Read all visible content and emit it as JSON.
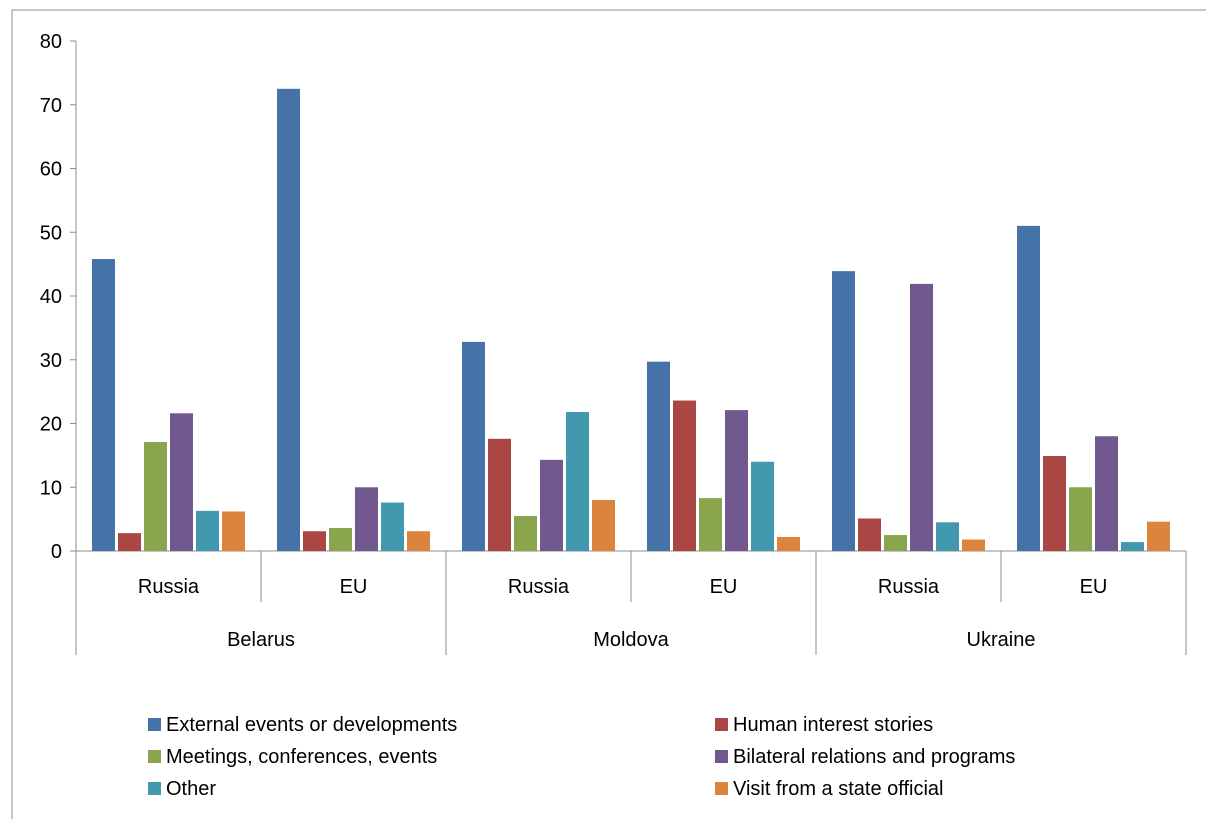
{
  "chart_data": {
    "type": "bar",
    "title": "",
    "xlabel": "",
    "ylabel": "",
    "ylim": [
      0,
      80
    ],
    "yticks": [
      0,
      10,
      20,
      30,
      40,
      50,
      60,
      70,
      80
    ],
    "grid": false,
    "legend_position": "bottom",
    "groups": [
      {
        "label": "Belarus",
        "categories": [
          "Russia",
          "EU"
        ]
      },
      {
        "label": "Moldova",
        "categories": [
          "Russia",
          "EU"
        ]
      },
      {
        "label": "Ukraine",
        "categories": [
          "Russia",
          "EU"
        ]
      }
    ],
    "series": [
      {
        "name": "External events or developments",
        "color": "#4572A7",
        "values": [
          45.8,
          72.5,
          32.8,
          29.7,
          43.9,
          51.0
        ]
      },
      {
        "name": "Human interest stories",
        "color": "#AA4643",
        "values": [
          2.8,
          3.1,
          17.6,
          23.6,
          5.1,
          14.9
        ]
      },
      {
        "name": "Meetings, conferences, events",
        "color": "#89A54E",
        "values": [
          17.1,
          3.6,
          5.5,
          8.3,
          2.5,
          10.0
        ]
      },
      {
        "name": "Bilateral relations and programs",
        "color": "#71588F",
        "values": [
          21.6,
          10.0,
          14.3,
          22.1,
          41.9,
          18.0
        ]
      },
      {
        "name": "Other",
        "color": "#4198AF",
        "values": [
          6.3,
          7.6,
          21.8,
          14.0,
          4.5,
          1.4
        ]
      },
      {
        "name": "Visit from a state official",
        "color": "#DB843D",
        "values": [
          6.2,
          3.1,
          8.0,
          2.2,
          1.8,
          4.6
        ]
      }
    ]
  }
}
